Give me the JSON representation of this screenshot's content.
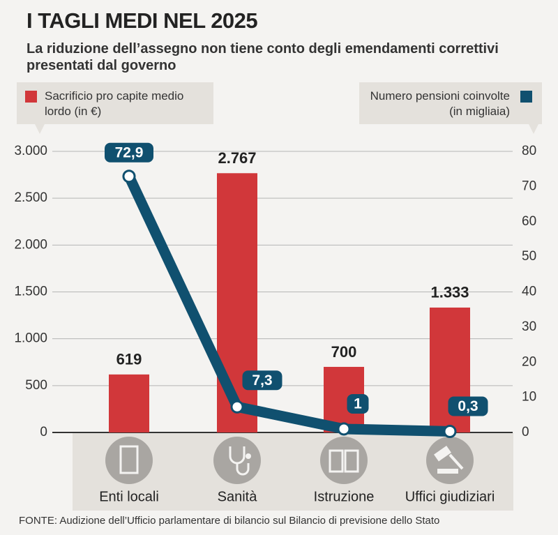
{
  "chart_data": {
    "type": "combo",
    "title": "I TAGLI MEDI NEL 2025",
    "subtitle": "La riduzione dell’assegno non tiene conto degli emendamenti correttivi presentati dal governo",
    "source": "FONTE: Audizione dell’Ufficio parlamentare di bilancio sul Bilancio di previsione dello Stato",
    "categories": [
      "Enti locali",
      "Sanità",
      "Istruzione",
      "Uffici giudiziari"
    ],
    "series": [
      {
        "name": "Sacrificio pro capite medio lordo (in €)",
        "type": "bar",
        "color": "#d1373a",
        "values": [
          619,
          2767,
          700,
          1333
        ],
        "value_labels": [
          "619",
          "2.767",
          "700",
          "1.333"
        ]
      },
      {
        "name": "Numero pensioni coinvolte (in migliaia)",
        "type": "line",
        "axis": "y2",
        "color": "#10506f",
        "values": [
          72.9,
          7.3,
          1,
          0.3
        ],
        "value_labels": [
          "72,9",
          "7,3",
          "1",
          "0,3"
        ]
      }
    ],
    "ylim": [
      0,
      3000
    ],
    "yticks": [
      0,
      500,
      {
        "value": 1000,
        "label": "1.000"
      },
      {
        "value": 1500,
        "label": "1.500"
      },
      {
        "value": 2000,
        "label": "2.000"
      },
      {
        "value": 2500,
        "label": "2.500"
      },
      {
        "value": 3000,
        "label": "3.000"
      }
    ],
    "y2lim": [
      0,
      80
    ],
    "y2ticks": [
      0,
      10,
      20,
      30,
      40,
      50,
      60,
      70,
      80
    ],
    "grid": true
  }
}
